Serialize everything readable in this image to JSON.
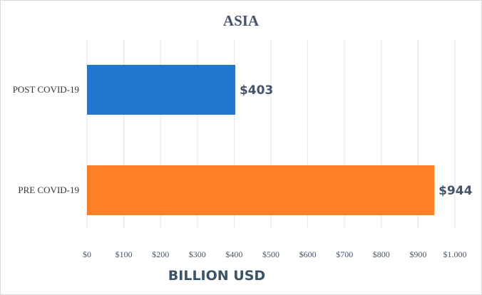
{
  "chart_data": {
    "type": "bar",
    "orientation": "horizontal",
    "title": "ASIA",
    "xlabel": "BILLION USD",
    "ylabel": "",
    "categories": [
      "POST COVID-19",
      "PRE COVID-19"
    ],
    "values": [
      403,
      944
    ],
    "data_labels": [
      "$403",
      "$944"
    ],
    "colors": [
      "#1f77d0",
      "#ff7f27"
    ],
    "xlim": [
      0,
      1000
    ],
    "x_ticks": [
      0,
      100,
      200,
      300,
      400,
      500,
      600,
      700,
      800,
      900,
      1000
    ],
    "x_tick_labels": [
      "$0",
      "$100",
      "$200",
      "$300",
      "$400",
      "$500",
      "$600",
      "$700",
      "$800",
      "$900",
      "$1.000"
    ],
    "grid": true,
    "legend": "none"
  }
}
